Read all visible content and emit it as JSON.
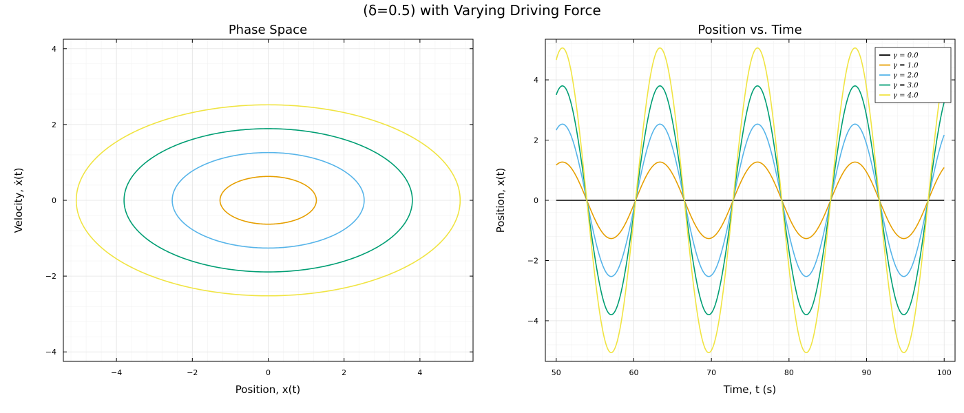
{
  "figure_title": "(δ=0.5) with Varying Driving Force",
  "chart_data": [
    {
      "type": "line",
      "title": "Phase Space",
      "xlabel": "Position, x(t)",
      "ylabel": "Velocity, ẋ(t)",
      "xlim": [
        -5.4,
        5.4
      ],
      "ylim": [
        -4.25,
        4.25
      ],
      "xticks": [
        -4,
        -2,
        0,
        2,
        4
      ],
      "yticks": [
        -4,
        -2,
        0,
        2,
        4
      ],
      "xtick_labels": [
        "−4",
        "−2",
        "0",
        "2",
        "4"
      ],
      "ytick_labels": [
        "−4",
        "−2",
        "0",
        "2",
        "4"
      ],
      "grid": true,
      "series": [
        {
          "name": "γ = 0.0",
          "color": "#000000",
          "x_amplitude": 0.0,
          "v_amplitude": 0.0
        },
        {
          "name": "γ = 1.0",
          "color": "#E69F00",
          "x_amplitude": 1.27,
          "v_amplitude": 0.63
        },
        {
          "name": "γ = 2.0",
          "color": "#56B4E9",
          "x_amplitude": 2.53,
          "v_amplitude": 1.26
        },
        {
          "name": "γ = 3.0",
          "color": "#009E73",
          "x_amplitude": 3.8,
          "v_amplitude": 1.89
        },
        {
          "name": "γ = 4.0",
          "color": "#F0E442",
          "x_amplitude": 5.06,
          "v_amplitude": 2.52
        }
      ]
    },
    {
      "type": "line",
      "title": "Position vs. Time",
      "xlabel": "Time, t (s)",
      "ylabel": "Position, x(t)",
      "xlim": [
        48.6,
        101.4
      ],
      "ylim": [
        -5.35,
        5.35
      ],
      "xticks": [
        50,
        60,
        70,
        80,
        90,
        100
      ],
      "yticks": [
        -4,
        -2,
        0,
        2,
        4
      ],
      "xtick_labels": [
        "50",
        "60",
        "70",
        "80",
        "90",
        "100"
      ],
      "ytick_labels": [
        "−4",
        "−2",
        "0",
        "2",
        "4"
      ],
      "grid": true,
      "legend_position": "top-right",
      "period": 12.57,
      "peak_time": 50.8,
      "t_range": [
        50,
        100
      ],
      "series": [
        {
          "name": "γ = 0.0",
          "color": "#000000",
          "amplitude": 0.0
        },
        {
          "name": "γ = 1.0",
          "color": "#E69F00",
          "amplitude": 1.27
        },
        {
          "name": "γ = 2.0",
          "color": "#56B4E9",
          "amplitude": 2.53
        },
        {
          "name": "γ = 3.0",
          "color": "#009E73",
          "amplitude": 3.8
        },
        {
          "name": "γ = 4.0",
          "color": "#F0E442",
          "amplitude": 5.06
        }
      ]
    }
  ]
}
